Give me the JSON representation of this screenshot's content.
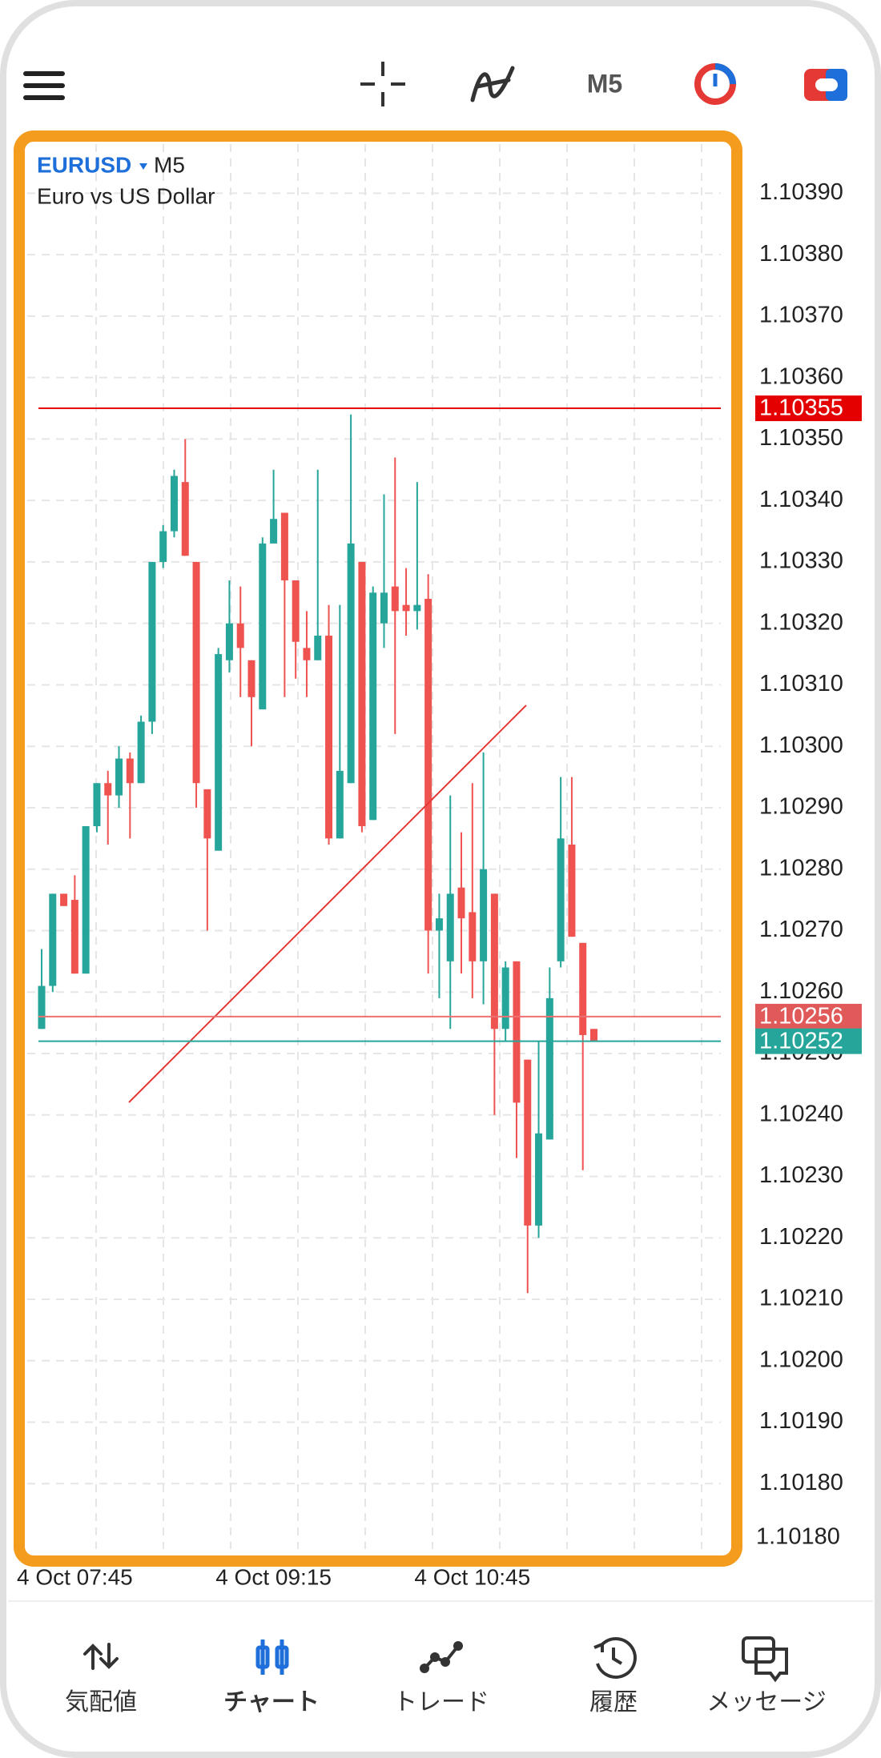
{
  "toolbar": {
    "timeframe": "M5"
  },
  "chart_data": {
    "type": "candlestick",
    "symbol": "EURUSD",
    "timeframe": "M5",
    "description": "Euro vs US Dollar",
    "categories": [
      null,
      null,
      null,
      "4 Oct 07:45",
      null,
      null,
      null,
      null,
      null,
      null,
      null,
      null,
      null,
      null,
      null,
      null,
      null,
      null,
      null,
      null,
      null,
      "4 Oct 09:15",
      null,
      null,
      null,
      null,
      null,
      null,
      null,
      null,
      null,
      null,
      null,
      null,
      null,
      null,
      null,
      null,
      null,
      "4 Oct 10:45",
      null,
      null,
      null,
      null,
      null,
      null,
      null,
      null,
      null,
      null,
      null
    ],
    "open": [
      1.10254,
      1.10261,
      1.10276,
      1.10275,
      1.10263,
      1.10287,
      1.10294,
      1.10292,
      1.10298,
      1.10294,
      1.10304,
      1.1033,
      1.10335,
      1.10343,
      1.1033,
      1.10293,
      1.10283,
      1.10314,
      1.1032,
      1.10314,
      1.10306,
      1.10333,
      1.10338,
      1.10327,
      1.10316,
      1.10314,
      1.10318,
      1.10285,
      1.10294,
      1.1033,
      1.10288,
      1.1032,
      1.10326,
      1.10323,
      1.10322,
      1.10324,
      1.1027,
      1.10265,
      1.10277,
      1.10273,
      1.10265,
      1.10276,
      1.10254,
      1.10265,
      1.10249,
      1.10222,
      1.10236,
      1.10265,
      1.10284,
      1.10268,
      1.10254
    ],
    "high": [
      1.10267,
      1.10276,
      1.10276,
      1.10279,
      1.10287,
      1.10294,
      1.10296,
      1.103,
      1.10299,
      1.10305,
      1.1033,
      1.10336,
      1.10345,
      1.1035,
      1.1033,
      1.10293,
      1.10316,
      1.10327,
      1.10326,
      1.10314,
      1.10334,
      1.10345,
      1.10338,
      1.10327,
      1.10322,
      1.10345,
      1.10323,
      1.10323,
      1.10354,
      1.1033,
      1.10326,
      1.10341,
      1.10347,
      1.10329,
      1.10343,
      1.10328,
      1.10276,
      1.10292,
      1.10286,
      1.10294,
      1.10299,
      1.10276,
      1.10265,
      1.10265,
      1.10249,
      1.10252,
      1.10264,
      1.10295,
      1.10295,
      1.10268,
      1.10254
    ],
    "low": [
      1.10254,
      1.1026,
      1.10274,
      1.10263,
      1.10263,
      1.10286,
      1.10284,
      1.1029,
      1.10285,
      1.10294,
      1.10302,
      1.10329,
      1.10334,
      1.10331,
      1.1029,
      1.1027,
      1.10283,
      1.10312,
      1.10308,
      1.103,
      1.10306,
      1.10333,
      1.10308,
      1.10311,
      1.10308,
      1.10314,
      1.10284,
      1.10285,
      1.10294,
      1.10286,
      1.10288,
      1.10316,
      1.10302,
      1.10318,
      1.10319,
      1.10263,
      1.10259,
      1.10254,
      1.10263,
      1.10259,
      1.10258,
      1.1024,
      1.10252,
      1.10233,
      1.10211,
      1.1022,
      1.10236,
      1.10264,
      1.10269,
      1.10231,
      1.10252
    ],
    "close": [
      1.10261,
      1.10276,
      1.10274,
      1.10263,
      1.10287,
      1.10294,
      1.10292,
      1.10298,
      1.10294,
      1.10304,
      1.1033,
      1.10335,
      1.10344,
      1.10331,
      1.10294,
      1.10285,
      1.10315,
      1.1032,
      1.10316,
      1.10308,
      1.10333,
      1.10337,
      1.10327,
      1.10317,
      1.10314,
      1.10318,
      1.10285,
      1.10296,
      1.10333,
      1.10287,
      1.10325,
      1.10325,
      1.10322,
      1.10322,
      1.10323,
      1.1027,
      1.10272,
      1.10276,
      1.10272,
      1.10265,
      1.1028,
      1.10254,
      1.10264,
      1.10242,
      1.10222,
      1.10237,
      1.10259,
      1.10285,
      1.10269,
      1.10253,
      1.10252
    ],
    "up_color": "#26a69a",
    "down_color": "#ef5350",
    "ylim": [
      1.1017,
      1.10398
    ],
    "yticks": [
      {
        "value": 1.1018,
        "label": "1.10180"
      },
      {
        "value": 1.1019,
        "label": "1.10190"
      },
      {
        "value": 1.102,
        "label": "1.10200"
      },
      {
        "value": 1.1021,
        "label": "1.10210"
      },
      {
        "value": 1.1022,
        "label": "1.10220"
      },
      {
        "value": 1.1023,
        "label": "1.10230"
      },
      {
        "value": 1.1024,
        "label": "1.10240"
      },
      {
        "value": 1.1025,
        "label": "1.10250"
      },
      {
        "value": 1.1026,
        "label": "1.10260"
      },
      {
        "value": 1.1027,
        "label": "1.10270"
      },
      {
        "value": 1.1028,
        "label": "1.10280"
      },
      {
        "value": 1.1029,
        "label": "1.10290"
      },
      {
        "value": 1.103,
        "label": "1.10300"
      },
      {
        "value": 1.1031,
        "label": "1.10310"
      },
      {
        "value": 1.1032,
        "label": "1.10320"
      },
      {
        "value": 1.1033,
        "label": "1.10330"
      },
      {
        "value": 1.1034,
        "label": "1.10340"
      },
      {
        "value": 1.1035,
        "label": "1.10350"
      },
      {
        "value": 1.1036,
        "label": "1.10360"
      },
      {
        "value": 1.1037,
        "label": "1.10370"
      },
      {
        "value": 1.1038,
        "label": "1.10380"
      },
      {
        "value": 1.1039,
        "label": "1.10390"
      }
    ],
    "bottom_price_label": "1.10180",
    "grid": true,
    "levels": [
      {
        "value": 1.10355,
        "color": "#e50000",
        "label_color": "#e50000"
      },
      {
        "value": 1.10256,
        "color": "#ef7070",
        "label_color": "#e05a5a"
      },
      {
        "value": 1.10252,
        "color": "#26a69a",
        "label_color": "#26a69a"
      }
    ]
  },
  "nav": {
    "items": [
      "気配値",
      "チャート",
      "トレード",
      "履歴",
      "メッセージ"
    ],
    "active": 1
  }
}
